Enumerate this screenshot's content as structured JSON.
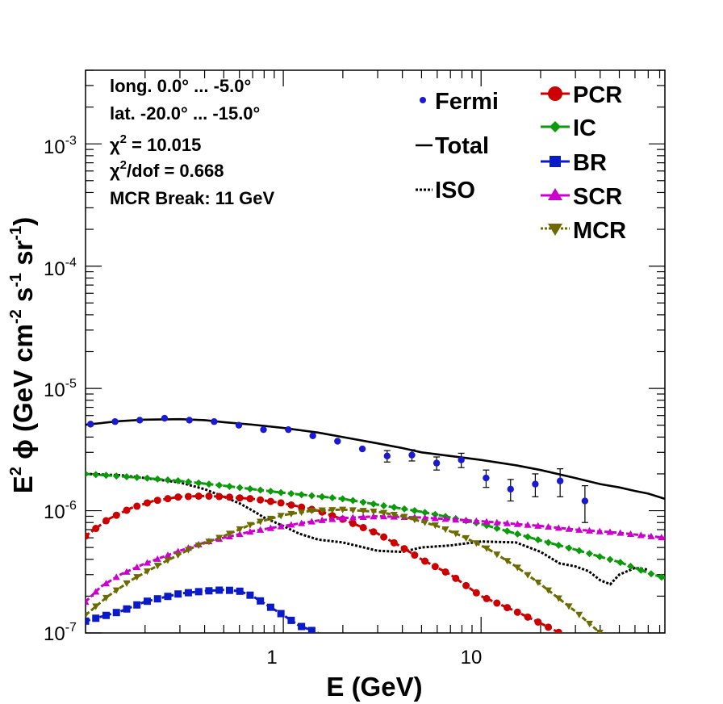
{
  "info": {
    "longitude": "long. 0.0° ... -5.0°",
    "latitude": "lat. -20.0° ... -15.0°",
    "chi2_symbol": "χ",
    "chi2_exp": "2",
    "chi2_value": " = 10.015",
    "chi2dof_symbol": "χ",
    "chi2dof_exp": "2",
    "chi2dof_value": "/dof = 0.668",
    "mcr_break": "MCR Break: 11 GeV"
  },
  "axes": {
    "xlabel": "E (GeV)",
    "ylabel": "E² ϕ (GeV cm⁻² s⁻¹ sr⁻¹)",
    "ylabel_parts": {
      "a": "E",
      "b": "2",
      "c": " ϕ (GeV cm",
      "d": "-2",
      "e": " s",
      "f": "-1",
      "g": " sr",
      "h": "-1",
      "i": ")"
    },
    "x_ticks": [
      {
        "value": 1,
        "label": "1"
      },
      {
        "value": 10,
        "label": "10"
      }
    ],
    "y_ticks": [
      {
        "value": 1e-07,
        "base": "10",
        "exp": "-7"
      },
      {
        "value": 1e-06,
        "base": "10",
        "exp": "-6"
      },
      {
        "value": 1e-05,
        "base": "10",
        "exp": "-5"
      },
      {
        "value": 0.0001,
        "base": "10",
        "exp": "-4"
      },
      {
        "value": 0.001,
        "base": "10",
        "exp": "-3"
      }
    ]
  },
  "legend": {
    "left": [
      {
        "key": "fermi",
        "label": "Fermi"
      },
      {
        "key": "total",
        "label": "Total"
      },
      {
        "key": "iso",
        "label": "ISO"
      }
    ],
    "right": [
      {
        "key": "pcr",
        "label": "PCR"
      },
      {
        "key": "ic",
        "label": "IC"
      },
      {
        "key": "br",
        "label": "BR"
      },
      {
        "key": "scr",
        "label": "SCR"
      },
      {
        "key": "mcr",
        "label": "MCR"
      }
    ]
  },
  "chart_data": {
    "type": "line",
    "xscale": "log",
    "yscale": "log",
    "xlim": [
      0.1,
      85
    ],
    "ylim": [
      1e-07,
      0.004
    ],
    "grid": false,
    "colors": {
      "fermi": "#1a1ad0",
      "total": "#000000",
      "iso": "#000000",
      "pcr": "#cc0000",
      "ic": "#0a9a0a",
      "br": "#0a1ac8",
      "scr": "#cc00cc",
      "mcr": "#6b6b00"
    },
    "fermi": [
      {
        "x": 0.106,
        "y": 5.1e-06,
        "err": 0
      },
      {
        "x": 0.141,
        "y": 5.35e-06,
        "err": 0
      },
      {
        "x": 0.188,
        "y": 5.5e-06,
        "err": 0
      },
      {
        "x": 0.251,
        "y": 5.7e-06,
        "err": 0
      },
      {
        "x": 0.335,
        "y": 5.5e-06,
        "err": 0
      },
      {
        "x": 0.447,
        "y": 5.35e-06,
        "err": 0
      },
      {
        "x": 0.596,
        "y": 5e-06,
        "err": 0
      },
      {
        "x": 0.794,
        "y": 4.6e-06,
        "err": 0
      },
      {
        "x": 1.06,
        "y": 4.6e-06,
        "err": 0
      },
      {
        "x": 1.41,
        "y": 4.1e-06,
        "err": 0
      },
      {
        "x": 1.88,
        "y": 3.7e-06,
        "err": 0
      },
      {
        "x": 2.51,
        "y": 3.2e-06,
        "err": 0
      },
      {
        "x": 3.35,
        "y": 2.8e-06,
        "err": 3e-07
      },
      {
        "x": 4.47,
        "y": 2.85e-06,
        "err": 3e-07
      },
      {
        "x": 5.96,
        "y": 2.45e-06,
        "err": 3e-07
      },
      {
        "x": 7.94,
        "y": 2.6e-06,
        "err": 3.5e-07
      },
      {
        "x": 10.6,
        "y": 1.85e-06,
        "err": 3e-07
      },
      {
        "x": 14.1,
        "y": 1.5e-06,
        "err": 3e-07
      },
      {
        "x": 18.8,
        "y": 1.65e-06,
        "err": 3.5e-07
      },
      {
        "x": 25.1,
        "y": 1.75e-06,
        "err": 4.5e-07
      },
      {
        "x": 33.5,
        "y": 1.2e-06,
        "err": 4e-07
      }
    ],
    "series": [
      {
        "key": "total",
        "marker": "none",
        "dash": "solid",
        "x": [
          0.1,
          0.15,
          0.2,
          0.3,
          0.4,
          0.5,
          0.7,
          1.0,
          1.5,
          2.0,
          3.0,
          4.0,
          5.0,
          7.0,
          10,
          15,
          20,
          30,
          40,
          50,
          60,
          70,
          85
        ],
        "y": [
          5.05e-06,
          5.4e-06,
          5.55e-06,
          5.6e-06,
          5.5e-06,
          5.3e-06,
          5.05e-06,
          4.75e-06,
          4.35e-06,
          4e-06,
          3.55e-06,
          3.25e-06,
          3e-06,
          2.8e-06,
          2.6e-06,
          2.35e-06,
          2.15e-06,
          1.85e-06,
          1.65e-06,
          1.55e-06,
          1.45e-06,
          1.38e-06,
          1.25e-06
        ]
      },
      {
        "key": "iso",
        "marker": "none",
        "dash": "dotted",
        "x": [
          0.1,
          0.15,
          0.2,
          0.3,
          0.4,
          0.5,
          0.6,
          0.7,
          0.8,
          1.0,
          1.2,
          1.5,
          2.0,
          3.0,
          4.0,
          5.0,
          7.0,
          10,
          15,
          20,
          25,
          30,
          35,
          40,
          45,
          50,
          60,
          70
        ],
        "y": [
          2e-06,
          1.95e-06,
          1.85e-06,
          1.7e-06,
          1.5e-06,
          1.3e-06,
          1.15e-06,
          1e-06,
          8.8e-07,
          7.5e-07,
          6.5e-07,
          5.8e-07,
          5.5e-07,
          4.7e-07,
          4.6e-07,
          5e-07,
          5.2e-07,
          5.6e-07,
          5.5e-07,
          4.6e-07,
          3.7e-07,
          3.5e-07,
          3.2e-07,
          2.7e-07,
          2.5e-07,
          3e-07,
          3.4e-07,
          3.3e-07
        ]
      },
      {
        "key": "ic",
        "marker": "diamond",
        "dash": "dashed",
        "x": [
          0.1,
          0.2,
          0.3,
          0.5,
          0.7,
          1.0,
          2.0,
          3.0,
          5.0,
          7.0,
          10,
          15,
          20,
          30,
          40,
          50,
          60,
          70,
          85
        ],
        "y": [
          2e-06,
          1.85e-06,
          1.75e-06,
          1.6e-06,
          1.5e-06,
          1.4e-06,
          1.25e-06,
          1.12e-06,
          9.8e-07,
          8.8e-07,
          7.8e-07,
          6.5e-07,
          5.7e-07,
          4.8e-07,
          4.2e-07,
          3.8e-07,
          3.4e-07,
          3.1e-07,
          2.8e-07
        ]
      },
      {
        "key": "pcr",
        "marker": "circle",
        "dash": "dashed",
        "x": [
          0.1,
          0.13,
          0.17,
          0.22,
          0.3,
          0.4,
          0.5,
          0.7,
          1.0,
          1.5,
          2.0,
          3.0,
          4.0,
          5.0,
          7.0,
          10,
          15,
          20,
          25
        ],
        "y": [
          6.2e-07,
          8.5e-07,
          1.05e-06,
          1.2e-06,
          1.3e-06,
          1.32e-06,
          1.3e-06,
          1.25e-06,
          1.15e-06,
          1e-06,
          8.5e-07,
          6.5e-07,
          5e-07,
          4e-07,
          3e-07,
          2e-07,
          1.5e-07,
          1.2e-07,
          1e-07
        ]
      },
      {
        "key": "scr",
        "marker": "triangle-up",
        "dash": "dashed",
        "x": [
          0.1,
          0.12,
          0.15,
          0.2,
          0.3,
          0.4,
          0.5,
          0.7,
          1.0,
          1.5,
          2.0,
          3.0,
          5.0,
          10,
          20,
          30,
          50,
          85
        ],
        "y": [
          1.8e-07,
          2.4e-07,
          3e-07,
          3.7e-07,
          4.7e-07,
          5.5e-07,
          6e-07,
          6.8e-07,
          7.5e-07,
          8.3e-07,
          8.7e-07,
          9e-07,
          8.8e-07,
          8.2e-07,
          7.5e-07,
          7e-07,
          6.6e-07,
          6e-07
        ]
      },
      {
        "key": "mcr",
        "marker": "triangle-down",
        "dash": "dashed",
        "x": [
          0.1,
          0.13,
          0.17,
          0.25,
          0.35,
          0.5,
          0.7,
          1.0,
          1.4,
          2.0,
          3.0,
          4.0,
          6.0,
          8.0,
          11,
          15,
          20,
          30,
          40
        ],
        "y": [
          1.4e-07,
          2e-07,
          2.7e-07,
          3.8e-07,
          5e-07,
          6.2e-07,
          7.8e-07,
          9.2e-07,
          1e-06,
          1.02e-06,
          9.8e-07,
          9e-07,
          7.5e-07,
          6.2e-07,
          4.8e-07,
          3.5e-07,
          2.5e-07,
          1.5e-07,
          1e-07
        ]
      },
      {
        "key": "br",
        "marker": "square",
        "dash": "dashed",
        "x": [
          0.1,
          0.15,
          0.2,
          0.3,
          0.4,
          0.5,
          0.6,
          0.7,
          0.8,
          1.0,
          1.2,
          1.5
        ],
        "y": [
          1.25e-07,
          1.5e-07,
          1.8e-07,
          2.1e-07,
          2.2e-07,
          2.25e-07,
          2.2e-07,
          2e-07,
          1.75e-07,
          1.4e-07,
          1.15e-07,
          1e-07
        ]
      }
    ]
  }
}
